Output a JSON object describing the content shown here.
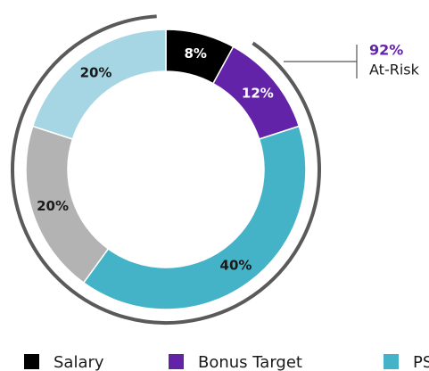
{
  "chart_data": {
    "type": "donut",
    "categories": [
      "Salary",
      "Bonus Target",
      "PS",
      null,
      null
    ],
    "values": [
      8,
      12,
      40,
      20,
      20
    ],
    "value_labels": [
      "8%",
      "12%",
      "40%",
      "20%",
      "20%"
    ],
    "colors": [
      "#000000",
      "#6323a8",
      "#45b3c7",
      "#b3b3b3",
      "#a6d6e3"
    ],
    "label_colors": [
      "#ffffff",
      "#ffffff",
      "#1a1a1a",
      "#1a1a1a",
      "#1a1a1a"
    ],
    "annotation": {
      "value": "92%",
      "text": "At-Risk"
    }
  }
}
